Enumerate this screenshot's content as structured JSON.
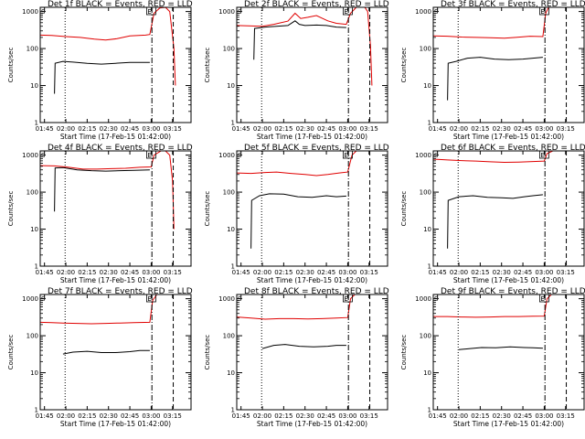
{
  "colors": {
    "events": "#000000",
    "lld": "#e00000",
    "axis": "#000000",
    "background": "#ffffff"
  },
  "common": {
    "xlabel": "Start Time (17-Feb-15 01:42:00)",
    "ylabel": "Counts/sec",
    "x_tick_labels": [
      "01:45",
      "02:00",
      "02:15",
      "02:30",
      "02:45",
      "03:00",
      "03:15"
    ],
    "x_ticks_minutes": [
      105,
      120,
      135,
      150,
      165,
      180,
      195
    ],
    "y_tick_labels": [
      "1",
      "10",
      "100",
      "1000"
    ],
    "y_ticks": [
      1,
      10,
      100,
      1000
    ],
    "xlim_minutes": [
      102,
      208
    ],
    "ylim": [
      1,
      1300
    ],
    "y_scale": "log",
    "markers": {
      "dotted_lines_minutes": [
        119.5
      ],
      "dashdot_lines_minutes": [
        180.5
      ],
      "dashed_lines_minutes": [
        195.5
      ],
      "corner_labels": [
        "S",
        "E"
      ]
    }
  },
  "chart_data": [
    {
      "type": "line",
      "title": "Det 1f BLACK = Events, RED = LLD",
      "series": [
        {
          "color": "#000000",
          "segments": [
            [
              [
                112,
                6
              ],
              [
                112.5,
                40
              ],
              [
                118,
                45
              ],
              [
                125,
                43
              ],
              [
                135,
                40
              ],
              [
                145,
                38
              ],
              [
                155,
                40
              ],
              [
                165,
                42
              ],
              [
                177,
                42
              ],
              [
                179,
                42
              ]
            ]
          ]
        },
        {
          "color": "#e00000",
          "segments": [
            [
              [
                102,
                230
              ],
              [
                110,
                225
              ],
              [
                120,
                210
              ],
              [
                130,
                200
              ],
              [
                140,
                180
              ],
              [
                148,
                170
              ],
              [
                156,
                185
              ],
              [
                165,
                220
              ],
              [
                176,
                230
              ],
              [
                179,
                240
              ],
              [
                182,
                900
              ],
              [
                186,
                1250
              ],
              [
                190,
                1300
              ],
              [
                193,
                1000
              ],
              [
                196,
                100
              ],
              [
                197,
                10
              ]
            ]
          ]
        }
      ]
    },
    {
      "type": "line",
      "title": "Det 2f BLACK = Events, RED = LLD",
      "series": [
        {
          "color": "#000000",
          "segments": [
            [
              [
                114,
                50
              ],
              [
                114.5,
                350
              ],
              [
                122,
                380
              ],
              [
                130,
                400
              ],
              [
                138,
                420
              ],
              [
                143,
                560
              ],
              [
                146,
                450
              ],
              [
                150,
                420
              ],
              [
                158,
                430
              ],
              [
                165,
                420
              ],
              [
                172,
                380
              ],
              [
                179,
                370
              ]
            ]
          ]
        },
        {
          "color": "#e00000",
          "segments": [
            [
              [
                102,
                420
              ],
              [
                110,
                410
              ],
              [
                120,
                400
              ],
              [
                128,
                450
              ],
              [
                138,
                550
              ],
              [
                143,
                900
              ],
              [
                147,
                650
              ],
              [
                152,
                700
              ],
              [
                158,
                780
              ],
              [
                166,
                560
              ],
              [
                172,
                480
              ],
              [
                179,
                450
              ],
              [
                182,
                900
              ],
              [
                186,
                1300
              ],
              [
                192,
                1300
              ],
              [
                194,
                1000
              ],
              [
                196,
                120
              ],
              [
                197,
                10
              ]
            ]
          ]
        }
      ]
    },
    {
      "type": "line",
      "title": "Det 3f BLACK = Events, RED = LLD",
      "series": [
        {
          "color": "#000000",
          "segments": [
            [
              [
                112,
                4
              ],
              [
                112.5,
                40
              ],
              [
                118,
                45
              ],
              [
                126,
                55
              ],
              [
                135,
                58
              ],
              [
                145,
                52
              ],
              [
                155,
                50
              ],
              [
                165,
                52
              ],
              [
                172,
                55
              ],
              [
                179,
                58
              ]
            ]
          ]
        },
        {
          "color": "#e00000",
          "segments": [
            [
              [
                102,
                220
              ],
              [
                112,
                215
              ],
              [
                122,
                205
              ],
              [
                132,
                200
              ],
              [
                142,
                195
              ],
              [
                152,
                190
              ],
              [
                160,
                200
              ],
              [
                170,
                215
              ],
              [
                179,
                210
              ],
              [
                181,
                900
              ],
              [
                183,
                1300
              ],
              [
                186,
                1300
              ]
            ]
          ]
        }
      ]
    },
    {
      "type": "line",
      "title": "Det 4f BLACK = Events, RED = LLD",
      "series": [
        {
          "color": "#000000",
          "segments": [
            [
              [
                112,
                30
              ],
              [
                112.5,
                450
              ],
              [
                118,
                460
              ],
              [
                128,
                400
              ],
              [
                138,
                380
              ],
              [
                148,
                370
              ],
              [
                158,
                380
              ],
              [
                168,
                390
              ],
              [
                179,
                400
              ]
            ]
          ]
        },
        {
          "color": "#e00000",
          "segments": [
            [
              [
                102,
                520
              ],
              [
                112,
                510
              ],
              [
                122,
                470
              ],
              [
                132,
                420
              ],
              [
                142,
                420
              ],
              [
                152,
                430
              ],
              [
                162,
                440
              ],
              [
                172,
                470
              ],
              [
                180,
                480
              ],
              [
                182,
                1000
              ],
              [
                187,
                1300
              ],
              [
                190,
                1300
              ],
              [
                193,
                1000
              ],
              [
                195,
                200
              ],
              [
                196,
                10
              ]
            ]
          ]
        }
      ]
    },
    {
      "type": "line",
      "title": "Det 5f BLACK = Events, RED = LLD",
      "series": [
        {
          "color": "#000000",
          "segments": [
            [
              [
                112,
                3
              ],
              [
                112.5,
                60
              ],
              [
                118,
                80
              ],
              [
                125,
                90
              ],
              [
                135,
                88
              ],
              [
                145,
                75
              ],
              [
                155,
                72
              ],
              [
                165,
                80
              ],
              [
                172,
                75
              ],
              [
                179,
                78
              ]
            ]
          ]
        },
        {
          "color": "#e00000",
          "segments": [
            [
              [
                102,
                330
              ],
              [
                112,
                320
              ],
              [
                122,
                340
              ],
              [
                130,
                350
              ],
              [
                140,
                320
              ],
              [
                150,
                300
              ],
              [
                158,
                280
              ],
              [
                166,
                300
              ],
              [
                174,
                330
              ],
              [
                180,
                350
              ],
              [
                183,
                1000
              ],
              [
                186,
                1300
              ]
            ]
          ]
        }
      ]
    },
    {
      "type": "line",
      "title": "Det 6f BLACK = Events, RED = LLD",
      "series": [
        {
          "color": "#000000",
          "segments": [
            [
              [
                112,
                3
              ],
              [
                112.5,
                60
              ],
              [
                120,
                75
              ],
              [
                130,
                80
              ],
              [
                140,
                72
              ],
              [
                150,
                70
              ],
              [
                158,
                68
              ],
              [
                166,
                75
              ],
              [
                172,
                80
              ],
              [
                179,
                85
              ]
            ]
          ]
        },
        {
          "color": "#e00000",
          "segments": [
            [
              [
                102,
                780
              ],
              [
                112,
                740
              ],
              [
                122,
                710
              ],
              [
                132,
                690
              ],
              [
                142,
                660
              ],
              [
                152,
                640
              ],
              [
                162,
                650
              ],
              [
                172,
                670
              ],
              [
                180,
                690
              ],
              [
                182,
                1100
              ],
              [
                186,
                1300
              ]
            ]
          ]
        }
      ]
    },
    {
      "type": "line",
      "title": "Det 7f BLACK = Events, RED = LLD",
      "series": [
        {
          "color": "#000000",
          "segments": [
            [
              [
                118,
                32
              ],
              [
                125,
                36
              ],
              [
                135,
                38
              ],
              [
                145,
                35
              ],
              [
                155,
                35
              ],
              [
                165,
                37
              ],
              [
                172,
                40
              ],
              [
                179,
                40
              ]
            ]
          ]
        },
        {
          "color": "#e00000",
          "segments": [
            [
              [
                102,
                230
              ],
              [
                110,
                225
              ],
              [
                118,
                220
              ],
              [
                128,
                215
              ],
              [
                138,
                210
              ],
              [
                148,
                215
              ],
              [
                158,
                220
              ],
              [
                168,
                225
              ],
              [
                179,
                230
              ],
              [
                181,
                900
              ],
              [
                184,
                1300
              ],
              [
                187,
                1300
              ]
            ]
          ]
        }
      ]
    },
    {
      "type": "line",
      "title": "Det 8f BLACK = Events, RED = LLD",
      "series": [
        {
          "color": "#000000",
          "segments": [
            [
              [
                120,
                45
              ],
              [
                128,
                55
              ],
              [
                136,
                58
              ],
              [
                146,
                52
              ],
              [
                156,
                50
              ],
              [
                166,
                52
              ],
              [
                172,
                55
              ],
              [
                179,
                55
              ]
            ]
          ]
        },
        {
          "color": "#e00000",
          "segments": [
            [
              [
                102,
                320
              ],
              [
                112,
                300
              ],
              [
                122,
                280
              ],
              [
                132,
                290
              ],
              [
                142,
                290
              ],
              [
                152,
                285
              ],
              [
                162,
                290
              ],
              [
                172,
                300
              ],
              [
                180,
                310
              ],
              [
                182,
                1000
              ],
              [
                185,
                1300
              ]
            ]
          ]
        }
      ]
    },
    {
      "type": "line",
      "title": "Det 9f BLACK = Events, RED = LLD",
      "series": [
        {
          "color": "#000000",
          "segments": [
            [
              [
                120,
                42
              ],
              [
                128,
                45
              ],
              [
                136,
                48
              ],
              [
                146,
                47
              ],
              [
                156,
                50
              ],
              [
                166,
                48
              ],
              [
                172,
                47
              ],
              [
                179,
                46
              ]
            ]
          ]
        },
        {
          "color": "#e00000",
          "segments": [
            [
              [
                102,
                330
              ],
              [
                112,
                330
              ],
              [
                122,
                320
              ],
              [
                132,
                315
              ],
              [
                142,
                320
              ],
              [
                152,
                330
              ],
              [
                162,
                330
              ],
              [
                172,
                335
              ],
              [
                180,
                340
              ],
              [
                182,
                1000
              ],
              [
                185,
                1300
              ]
            ]
          ]
        }
      ]
    }
  ]
}
